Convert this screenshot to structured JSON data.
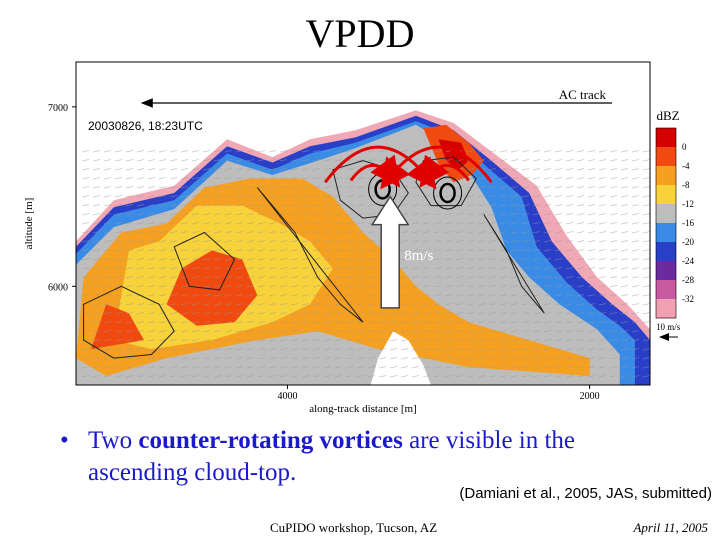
{
  "slide": {
    "title": "VPDD",
    "bullet_symbol": "•",
    "bullet_pre": "Two ",
    "bullet_bold": "counter-rotating vortices",
    "bullet_post": " are visible in the ascending cloud-top.",
    "citation": "(Damiani et al., 2005, JAS, submitted)",
    "footer_left": "CuPIDO workshop, Tucson, AZ",
    "footer_right": "April 11, 2005"
  },
  "chart_data": {
    "type": "heatmap",
    "timestamp": "20030826, 18:23UTC",
    "xlabel": "along-track distance [m]",
    "ylabel": "altitude [m]",
    "x_ticks": [
      4000,
      2000
    ],
    "y_ticks": [
      7000,
      6000
    ],
    "xlim": [
      5400,
      1600
    ],
    "ylim": [
      5450,
      7250
    ],
    "track_label": "AC track",
    "updraft_label": "8m/s",
    "wind_scale_label": "10 m/s",
    "colorbar": {
      "title": "dBZ",
      "ticks": [
        0,
        -4,
        -8,
        -12,
        -16,
        -20,
        -24,
        -28,
        -32
      ],
      "colors": [
        "#d40000",
        "#f04a10",
        "#f5a020",
        "#f7d23a",
        "#bdbdbd",
        "#3a8be6",
        "#2a3fc8",
        "#6a2aa0",
        "#c85aa0",
        "#f0a0b0"
      ]
    },
    "layers": [
      {
        "dbz": -32,
        "color": "#f0a8b4",
        "points": [
          [
            5400,
            5450
          ],
          [
            5400,
            6250
          ],
          [
            5150,
            6480
          ],
          [
            4750,
            6560
          ],
          [
            4400,
            6820
          ],
          [
            4100,
            6720
          ],
          [
            3850,
            6820
          ],
          [
            3550,
            6870
          ],
          [
            3150,
            6980
          ],
          [
            2900,
            6910
          ],
          [
            2600,
            6720
          ],
          [
            2350,
            6560
          ],
          [
            2150,
            6280
          ],
          [
            1950,
            6050
          ],
          [
            1750,
            5900
          ],
          [
            1600,
            5760
          ],
          [
            1600,
            5450
          ]
        ]
      },
      {
        "dbz": -20,
        "color": "#2a3fc8",
        "points": [
          [
            5400,
            5450
          ],
          [
            5400,
            6220
          ],
          [
            5150,
            6440
          ],
          [
            4750,
            6520
          ],
          [
            4400,
            6780
          ],
          [
            4100,
            6690
          ],
          [
            3850,
            6780
          ],
          [
            3550,
            6830
          ],
          [
            3150,
            6950
          ],
          [
            2900,
            6870
          ],
          [
            2650,
            6700
          ],
          [
            2400,
            6520
          ],
          [
            2250,
            6250
          ],
          [
            2050,
            6050
          ],
          [
            1850,
            5900
          ],
          [
            1700,
            5800
          ],
          [
            1600,
            5700
          ],
          [
            1600,
            5450
          ]
        ]
      },
      {
        "dbz": -16,
        "color": "#3a8be6",
        "points": [
          [
            5400,
            5450
          ],
          [
            5400,
            6180
          ],
          [
            5150,
            6400
          ],
          [
            4750,
            6480
          ],
          [
            4400,
            6740
          ],
          [
            4100,
            6650
          ],
          [
            3850,
            6740
          ],
          [
            3550,
            6800
          ],
          [
            3150,
            6920
          ],
          [
            2900,
            6840
          ],
          [
            2700,
            6680
          ],
          [
            2450,
            6500
          ],
          [
            2350,
            6220
          ],
          [
            2150,
            6020
          ],
          [
            1950,
            5870
          ],
          [
            1800,
            5780
          ],
          [
            1700,
            5700
          ],
          [
            1700,
            5450
          ]
        ]
      },
      {
        "dbz": -12,
        "color": "#bdbdbd",
        "points": [
          [
            5400,
            5450
          ],
          [
            5400,
            6120
          ],
          [
            5150,
            6330
          ],
          [
            4750,
            6430
          ],
          [
            4400,
            6700
          ],
          [
            4100,
            6620
          ],
          [
            3800,
            6700
          ],
          [
            3550,
            6770
          ],
          [
            3150,
            6900
          ],
          [
            2950,
            6800
          ],
          [
            2800,
            6640
          ],
          [
            2650,
            6440
          ],
          [
            2550,
            6200
          ],
          [
            2400,
            6050
          ],
          [
            2200,
            5900
          ],
          [
            1950,
            5760
          ],
          [
            1800,
            5620
          ],
          [
            1800,
            5450
          ]
        ]
      },
      {
        "dbz": -8,
        "color": "#f5a020",
        "points": [
          [
            5400,
            5600
          ],
          [
            5350,
            6050
          ],
          [
            5100,
            6300
          ],
          [
            4800,
            6350
          ],
          [
            4550,
            6550
          ],
          [
            4250,
            6600
          ],
          [
            3900,
            6600
          ],
          [
            3700,
            6500
          ],
          [
            3500,
            6300
          ],
          [
            3300,
            6150
          ],
          [
            3150,
            6000
          ],
          [
            3000,
            5900
          ],
          [
            2800,
            5800
          ],
          [
            2600,
            5750
          ],
          [
            2400,
            5700
          ],
          [
            2200,
            5650
          ],
          [
            2000,
            5600
          ],
          [
            2000,
            5500
          ],
          [
            2800,
            5550
          ],
          [
            3400,
            5650
          ],
          [
            3800,
            5750
          ],
          [
            4200,
            5700
          ],
          [
            4800,
            5600
          ],
          [
            5200,
            5500
          ]
        ]
      },
      {
        "dbz": -8,
        "color": "#f7d23a",
        "points": [
          [
            5150,
            5700
          ],
          [
            5050,
            6200
          ],
          [
            4850,
            6250
          ],
          [
            4600,
            6450
          ],
          [
            4300,
            6450
          ],
          [
            4050,
            6350
          ],
          [
            3850,
            6250
          ],
          [
            3700,
            6100
          ],
          [
            3850,
            5900
          ],
          [
            4100,
            5800
          ],
          [
            4500,
            5700
          ],
          [
            4900,
            5650
          ]
        ]
      },
      {
        "dbz": -4,
        "color": "#f04a10",
        "points": [
          [
            4800,
            5900
          ],
          [
            4700,
            6100
          ],
          [
            4500,
            6200
          ],
          [
            4300,
            6150
          ],
          [
            4200,
            5950
          ],
          [
            4350,
            5800
          ],
          [
            4600,
            5780
          ]
        ]
      },
      {
        "dbz": -4,
        "color": "#f04a10",
        "points": [
          [
            3100,
            6880
          ],
          [
            3000,
            6680
          ],
          [
            2900,
            6580
          ],
          [
            2780,
            6620
          ],
          [
            2700,
            6700
          ],
          [
            2800,
            6800
          ],
          [
            2950,
            6900
          ]
        ]
      },
      {
        "dbz": 0,
        "color": "#d40000",
        "points": [
          [
            3000,
            6820
          ],
          [
            2950,
            6700
          ],
          [
            2870,
            6650
          ],
          [
            2800,
            6700
          ],
          [
            2850,
            6800
          ]
        ]
      },
      {
        "dbz": -4,
        "color": "#f04a10",
        "points": [
          [
            5300,
            5650
          ],
          [
            5200,
            5900
          ],
          [
            5050,
            5850
          ],
          [
            4950,
            5700
          ]
        ]
      }
    ],
    "gap_region": {
      "color": "#ffffff",
      "points": [
        [
          3450,
          5450
        ],
        [
          3400,
          5600
        ],
        [
          3300,
          5750
        ],
        [
          3200,
          5700
        ],
        [
          3100,
          5560
        ],
        [
          3050,
          5450
        ]
      ]
    },
    "vortices": [
      {
        "x": 3370,
        "y": 6540,
        "r": 80
      },
      {
        "x": 2940,
        "y": 6520,
        "r": 80
      }
    ],
    "contours": [
      {
        "points": [
          [
            5350,
            5900
          ],
          [
            5100,
            6000
          ],
          [
            4850,
            5900
          ],
          [
            4750,
            5750
          ],
          [
            4900,
            5620
          ],
          [
            5150,
            5600
          ],
          [
            5350,
            5700
          ]
        ]
      },
      {
        "points": [
          [
            4750,
            6220
          ],
          [
            4550,
            6300
          ],
          [
            4350,
            6150
          ],
          [
            4450,
            5980
          ],
          [
            4650,
            6000
          ]
        ]
      },
      {
        "points": [
          [
            3700,
            6650
          ],
          [
            3500,
            6700
          ],
          [
            3300,
            6650
          ],
          [
            3200,
            6520
          ],
          [
            3300,
            6400
          ],
          [
            3500,
            6380
          ],
          [
            3650,
            6480
          ]
        ]
      },
      {
        "points": [
          [
            3100,
            6700
          ],
          [
            2900,
            6720
          ],
          [
            2750,
            6600
          ],
          [
            2850,
            6450
          ],
          [
            3050,
            6450
          ],
          [
            3150,
            6580
          ]
        ]
      },
      {
        "points": [
          [
            4200,
            6550
          ],
          [
            3950,
            6300
          ],
          [
            3800,
            6050
          ],
          [
            3650,
            5900
          ],
          [
            3500,
            5800
          ]
        ]
      },
      {
        "points": [
          [
            2700,
            6400
          ],
          [
            2550,
            6200
          ],
          [
            2450,
            6000
          ],
          [
            2300,
            5850
          ]
        ]
      }
    ],
    "rotation_arrows": [
      {
        "from": [
          3750,
          6580
        ],
        "to": [
          3050,
          6580
        ],
        "peak": 6860
      },
      {
        "from": [
          2650,
          6580
        ],
        "to": [
          3350,
          6580
        ],
        "peak": 6860
      }
    ],
    "updraft_arrow": {
      "x": 3320,
      "y_base": 5880,
      "y_tip": 6500
    }
  }
}
